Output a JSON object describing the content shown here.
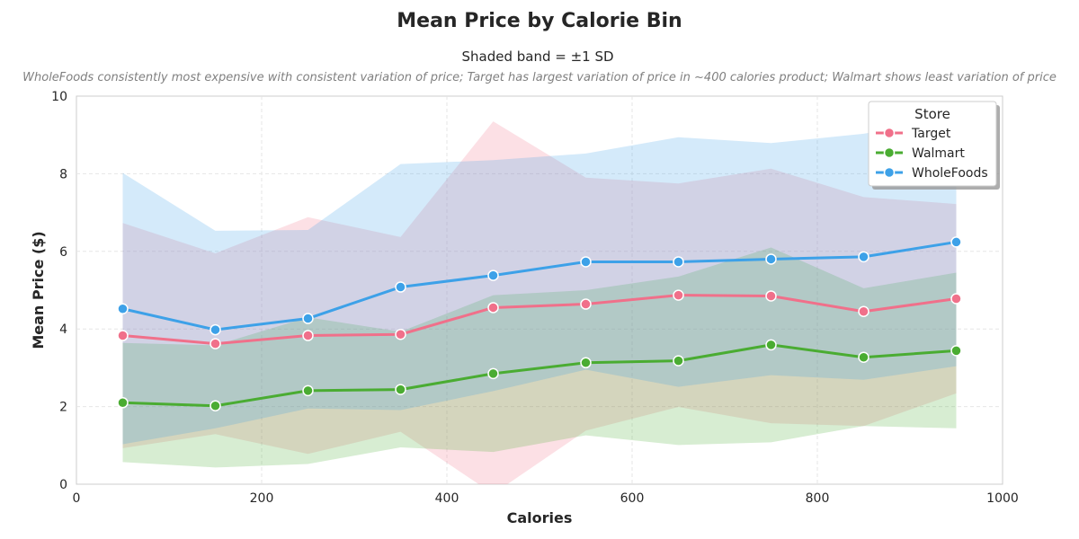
{
  "chart_data": {
    "type": "line",
    "title": "Mean Price by Calorie Bin",
    "subtitle": "Shaded band = ±1 SD",
    "annotation": "WholeFoods consistently most expensive with consistent variation of price; Target has largest variation of price in ~400 calories product; Walmart shows least variation of price",
    "xlabel": "Calories",
    "ylabel": "Mean Price ($)",
    "xlim": [
      0,
      1000
    ],
    "ylim": [
      0,
      10
    ],
    "xticks": [
      0,
      200,
      400,
      600,
      800,
      1000
    ],
    "yticks": [
      0,
      2,
      4,
      6,
      8,
      10
    ],
    "grid": true,
    "legend": {
      "title": "Store",
      "position": "top-right"
    },
    "x": [
      50,
      150,
      250,
      350,
      450,
      550,
      650,
      750,
      850,
      950
    ],
    "series": [
      {
        "name": "Target",
        "color": "#f0708a",
        "values": [
          3.83,
          3.62,
          3.83,
          3.86,
          4.55,
          4.64,
          4.87,
          4.85,
          4.45,
          4.78
        ],
        "upper": [
          6.73,
          5.95,
          6.88,
          6.37,
          9.35,
          7.9,
          7.75,
          8.13,
          7.4,
          7.22
        ],
        "lower": [
          0.93,
          1.29,
          0.78,
          1.35,
          -0.25,
          1.38,
          1.99,
          1.57,
          1.5,
          2.34
        ]
      },
      {
        "name": "Walmart",
        "color": "#4aac32",
        "values": [
          2.1,
          2.02,
          2.41,
          2.44,
          2.85,
          3.13,
          3.18,
          3.59,
          3.27,
          3.44
        ],
        "upper": [
          3.64,
          3.58,
          4.3,
          3.93,
          4.87,
          5.0,
          5.35,
          6.1,
          5.05,
          5.45
        ],
        "lower": [
          0.57,
          0.43,
          0.52,
          0.95,
          0.83,
          1.26,
          1.01,
          1.08,
          1.5,
          1.44
        ]
      },
      {
        "name": "WholeFoods",
        "color": "#3da1e8",
        "values": [
          4.52,
          3.98,
          4.27,
          5.08,
          5.38,
          5.73,
          5.73,
          5.8,
          5.86,
          6.24
        ],
        "upper": [
          8.02,
          6.53,
          6.55,
          8.25,
          8.35,
          8.52,
          8.94,
          8.79,
          9.03,
          9.45
        ],
        "lower": [
          1.03,
          1.44,
          1.95,
          1.91,
          2.4,
          2.95,
          2.51,
          2.81,
          2.69,
          3.04
        ]
      }
    ]
  }
}
